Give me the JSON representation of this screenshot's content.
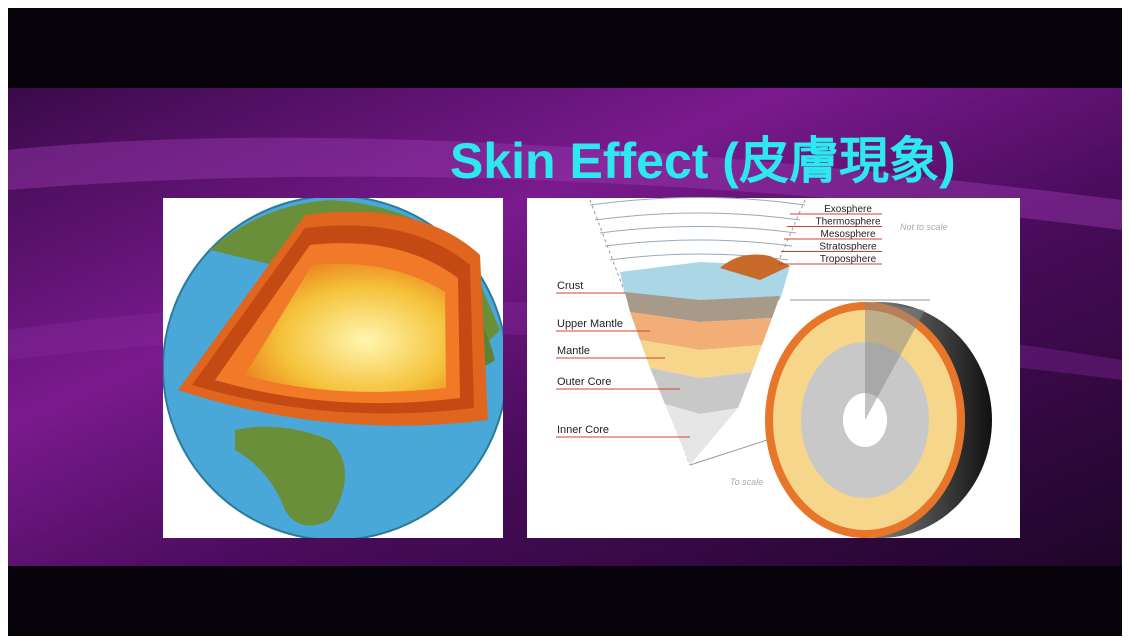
{
  "slide": {
    "title": "Skin Effect (皮膚現象)",
    "atmosphere_labels": [
      "Exosphere",
      "Thermosphere",
      "Mesosphere",
      "Stratosphere",
      "Troposphere"
    ],
    "atmosphere_note": "Not to scale",
    "layer_labels": [
      "Crust",
      "Upper Mantle",
      "Mantle",
      "Outer Core",
      "Inner Core"
    ],
    "scale_note": "To scale"
  }
}
